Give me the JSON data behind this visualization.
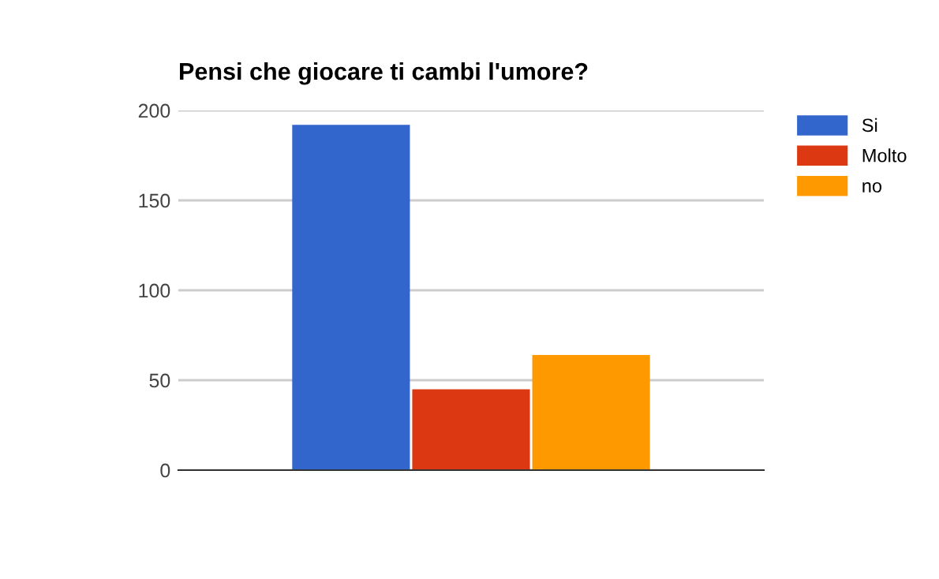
{
  "chart_data": {
    "type": "bar",
    "title": "Pensi che giocare ti cambi l'umore?",
    "categories": [
      null
    ],
    "series": [
      {
        "name": "Si",
        "color": "#3366cc",
        "values": [
          192
        ]
      },
      {
        "name": "Molto",
        "color": "#dc3912",
        "values": [
          45
        ]
      },
      {
        "name": "no",
        "color": "#ff9900",
        "values": [
          64
        ]
      }
    ],
    "ylim": [
      0,
      200
    ],
    "yticks": [
      0,
      50,
      100,
      150,
      200
    ],
    "grid": "y",
    "legend": "top right"
  }
}
